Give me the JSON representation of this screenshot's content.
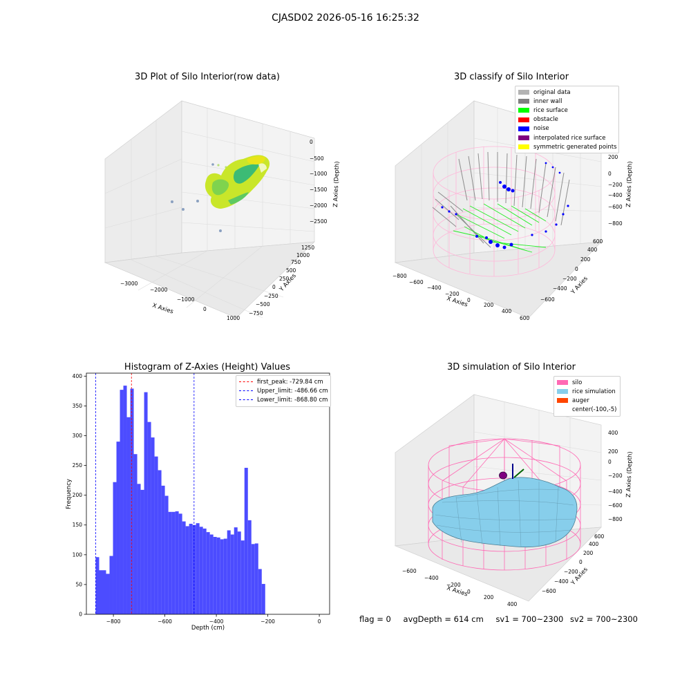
{
  "suptitle": "CJASD02 2026-05-16 16:25:32",
  "status": {
    "flag": "flag = 0",
    "avg_depth": "avgDepth = 614 cm",
    "sv1": "sv1 = 700~2300",
    "sv2": "sv2 = 700~2300"
  },
  "colors": {
    "hist_bar": "#4c4cff",
    "first_peak_line": "#ff0000",
    "limit_lines": "#0000ff",
    "silo_mesh": "#ff69b4",
    "rice_simulation": "#87ceeb",
    "auger": "#ff4500",
    "pane": "#f2f2f2"
  },
  "chart_data": [
    {
      "type": "scatter",
      "projection": "3d",
      "title": "3D Plot of Silo Interior(row data)",
      "xlabel": "X Axies",
      "ylabel": "Y Axies",
      "zlabel": "Z Axies (Depth)",
      "xticks": [
        "−3000",
        "−2000",
        "−1000",
        "0",
        "1000"
      ],
      "yticks": [
        "−750",
        "−500",
        "−250",
        "0",
        "250",
        "500",
        "750",
        "1000",
        "1250"
      ],
      "zticks": [
        "0",
        "−500",
        "−1000",
        "−1500",
        "−2000",
        "−2500"
      ],
      "colormap": "viridis"
    },
    {
      "type": "scatter",
      "projection": "3d",
      "title": "3D classify of Silo Interior",
      "xlabel": "X Axies",
      "ylabel": "Y Axies",
      "zlabel": "Z Axies (Depth)",
      "xticks": [
        "−800",
        "−600",
        "−400",
        "−200",
        "0",
        "200",
        "400",
        "600"
      ],
      "yticks": [
        "−600",
        "−400",
        "−200",
        "0",
        "200",
        "400",
        "600"
      ],
      "zticks": [
        "200",
        "0",
        "−200",
        "−400",
        "−600",
        "−800"
      ],
      "legend_position": "top-right",
      "legend": [
        {
          "label": "original data",
          "color": "#b3b3b3"
        },
        {
          "label": "inner wall",
          "color": "#808080"
        },
        {
          "label": "rice surface",
          "color": "#00ff00"
        },
        {
          "label": "obstacle",
          "color": "#ff0000"
        },
        {
          "label": "noise",
          "color": "#0000ff"
        },
        {
          "label": "interpolated rice surface",
          "color": "#800080"
        },
        {
          "label": "symmetric generated points",
          "color": "#ffff00"
        }
      ]
    },
    {
      "type": "bar",
      "title": "Histogram of Z-Axies (Height) Values",
      "xlabel": "Depth (cm)",
      "ylabel": "Frequency",
      "xlim": [
        -905,
        40
      ],
      "ylim": [
        0,
        405
      ],
      "xticks": [
        -800,
        -600,
        -400,
        -200,
        0
      ],
      "yticks": [
        0,
        50,
        100,
        150,
        200,
        250,
        300,
        350,
        400
      ],
      "bin_start": -868.8,
      "bin_width": 13.44,
      "values": [
        96,
        74,
        74,
        68,
        98,
        222,
        290,
        377,
        384,
        331,
        379,
        269,
        219,
        209,
        373,
        323,
        297,
        265,
        242,
        216,
        199,
        172,
        172,
        173,
        169,
        156,
        148,
        152,
        150,
        153,
        147,
        144,
        138,
        134,
        130,
        129,
        126,
        127,
        141,
        134,
        146,
        139,
        124,
        246,
        158,
        118,
        119,
        76,
        51
      ],
      "vlines": [
        {
          "label": "first_peak: -729.84 cm",
          "x": -729.84,
          "color": "#ff0000"
        },
        {
          "label": "Upper_limit: -486.66 cm",
          "x": -486.66,
          "color": "#0000ff"
        },
        {
          "label": "Lower_limit: -868.80 cm",
          "x": -868.8,
          "color": "#0000ff"
        }
      ],
      "legend_position": "top-right"
    },
    {
      "type": "surface",
      "projection": "3d",
      "title": "3D simulation of Silo Interior",
      "xlabel": "X Axies",
      "ylabel": "Y Axies",
      "zlabel": "Z Axies (Depth)",
      "xticks": [
        "−600",
        "−400",
        "−200",
        "0",
        "200",
        "400"
      ],
      "yticks": [
        "−600",
        "−400",
        "−200",
        "0",
        "200",
        "400",
        "600"
      ],
      "zticks": [
        "400",
        "200",
        "0",
        "−200",
        "−400",
        "−600",
        "−800"
      ],
      "legend_position": "top-right",
      "legend": [
        {
          "label": "silo",
          "color": "#ff69b4"
        },
        {
          "label": "rice simulation",
          "color": "#87ceeb"
        },
        {
          "label": "auger",
          "color": "#ff4500"
        },
        {
          "label": "center(-100,-5)",
          "color": ""
        }
      ]
    }
  ]
}
